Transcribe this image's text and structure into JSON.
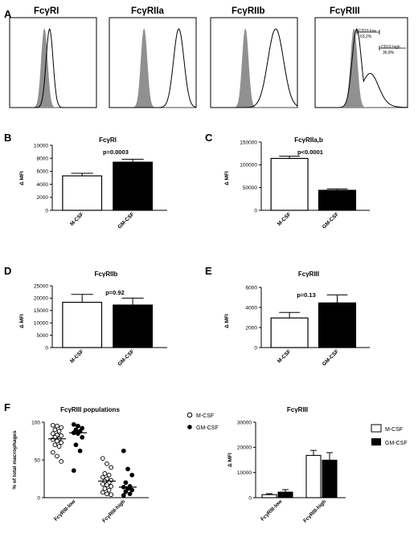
{
  "panel_letters": [
    "A",
    "B",
    "C",
    "D",
    "E",
    "F"
  ],
  "colors": {
    "fill_black": "#000000",
    "fill_white": "#ffffff",
    "isotype_gray": "#909090"
  },
  "legend": {
    "scatter": [
      {
        "label": "M-CSF",
        "marker": "open-circle"
      },
      {
        "label": "GM-CSF",
        "marker": "filled-circle"
      }
    ],
    "bar": [
      {
        "label": "M-CSF",
        "fill": "white"
      },
      {
        "label": "GM-CSF",
        "fill": "black"
      }
    ]
  },
  "chart_data": [
    {
      "id": "A1",
      "type": "histogram",
      "title": "FcγRI",
      "series": [
        {
          "name": "isotype",
          "style": "filled-gray",
          "mode": 0.4,
          "width": 0.035
        },
        {
          "name": "stained",
          "style": "outline",
          "mode": 0.46,
          "width": 0.04
        }
      ]
    },
    {
      "id": "A2",
      "type": "histogram",
      "title": "FcγRIIa",
      "series": [
        {
          "name": "isotype",
          "style": "filled-gray",
          "mode": 0.4,
          "width": 0.035
        },
        {
          "name": "stained",
          "style": "outline",
          "mode": 0.8,
          "width": 0.06
        }
      ]
    },
    {
      "id": "A3",
      "type": "histogram",
      "title": "FcγRIIb",
      "series": [
        {
          "name": "isotype",
          "style": "filled-gray",
          "mode": 0.4,
          "width": 0.035
        },
        {
          "name": "stained",
          "style": "outline",
          "mode": 0.75,
          "width": 0.09
        }
      ]
    },
    {
      "id": "A4",
      "type": "histogram",
      "title": "FcγRIII",
      "gates": [
        {
          "label": "CD16 low",
          "value": "63,2%"
        },
        {
          "label": "CD16 high",
          "value": "36,8%"
        }
      ],
      "series": [
        {
          "name": "isotype",
          "style": "filled-gray",
          "mode": 0.42,
          "width": 0.035
        },
        {
          "name": "stained",
          "style": "outline",
          "mode": 0.45,
          "width": 0.05,
          "tail": true
        }
      ]
    },
    {
      "id": "B",
      "type": "bar",
      "title": "FcγRI",
      "ylabel": "Δ MFI",
      "categories": [
        "M-CSF",
        "GM-CSF"
      ],
      "values": [
        5300,
        7400
      ],
      "errors": [
        400,
        450
      ],
      "ylim": [
        0,
        10000
      ],
      "yticks": [
        0,
        2000,
        4000,
        6000,
        8000,
        10000
      ],
      "ytick_labels": [
        "0",
        "2000",
        "4000",
        "6000",
        "8000",
        "10000"
      ],
      "pvalue": "p=0.0003"
    },
    {
      "id": "C",
      "type": "bar",
      "title": "FcγRIIa,b",
      "ylabel": "Δ MFI",
      "categories": [
        "M-CSF",
        "GM-CSF"
      ],
      "values": [
        114000,
        44000
      ],
      "errors": [
        5000,
        3000
      ],
      "ylim": [
        0,
        150000
      ],
      "yticks": [
        0,
        50000,
        100000,
        150000
      ],
      "ytick_labels": [
        "0",
        "50000",
        "100000",
        "150000"
      ],
      "pvalue": "p<0.0001"
    },
    {
      "id": "D",
      "type": "bar",
      "title": "FcγRIIb",
      "ylabel": "Δ MFI",
      "categories": [
        "M-CSF",
        "GM-CSF"
      ],
      "values": [
        18300,
        17200
      ],
      "errors": [
        3200,
        2800
      ],
      "ylim": [
        0,
        25000
      ],
      "yticks": [
        0,
        5000,
        10000,
        15000,
        20000,
        25000
      ],
      "ytick_labels": [
        "0",
        "5000",
        "10000",
        "15000",
        "20000",
        "25000"
      ],
      "pvalue": "p=0.92"
    },
    {
      "id": "E",
      "type": "bar",
      "title": "FcγRIII",
      "ylabel": "Δ MFI",
      "categories": [
        "M-CSF",
        "GM-CSF"
      ],
      "values": [
        2950,
        4450
      ],
      "errors": [
        550,
        800
      ],
      "ylim": [
        0,
        6000
      ],
      "yticks": [
        0,
        2000,
        4000,
        6000
      ],
      "ytick_labels": [
        "0",
        "2000",
        "4000",
        "6000"
      ],
      "pvalue": "p=0.13"
    },
    {
      "id": "F1",
      "type": "scatter",
      "title": "FcγRIII populations",
      "ylabel": "% of total macrophages",
      "categories": [
        "FcγRIII-low",
        "FcγRIII-high"
      ],
      "ylim": [
        0,
        100
      ],
      "yticks": [
        0,
        50,
        100
      ],
      "ytick_labels": [
        "0",
        "50",
        "100"
      ],
      "series": [
        {
          "name": "M-CSF",
          "marker": "open",
          "groups": [
            {
              "category": "FcγRIII-low",
              "values": [
                96,
                95,
                93,
                90,
                88,
                85,
                83,
                82,
                80,
                78,
                77,
                75,
                73,
                70,
                68,
                60,
                55,
                48
              ],
              "median": 78
            },
            {
              "category": "FcγRIII-high",
              "values": [
                52,
                45,
                40,
                32,
                30,
                27,
                25,
                23,
                22,
                20,
                18,
                17,
                15,
                12,
                10,
                7,
                5,
                4
              ],
              "median": 22
            }
          ]
        },
        {
          "name": "GM-CSF",
          "marker": "filled",
          "groups": [
            {
              "category": "FcγRIII-low",
              "values": [
                97,
                95,
                92,
                90,
                88,
                86,
                85,
                80,
                70,
                62,
                36
              ],
              "median": 86
            },
            {
              "category": "FcγRIII-high",
              "values": [
                62,
                38,
                30,
                20,
                15,
                14,
                12,
                10,
                8,
                5,
                3
              ],
              "median": 14
            }
          ]
        }
      ]
    },
    {
      "id": "F2",
      "type": "bar",
      "title": "FcγRIII",
      "ylabel": "Δ MFI",
      "categories": [
        "FcγRIII-low",
        "FcγRIII-high"
      ],
      "series": [
        {
          "name": "M-CSF",
          "values": [
            1200,
            16800
          ],
          "errors": [
            400,
            2000
          ]
        },
        {
          "name": "GM-CSF",
          "values": [
            2200,
            14900
          ],
          "errors": [
            1000,
            3000
          ]
        }
      ],
      "ylim": [
        0,
        30000
      ],
      "yticks": [
        0,
        10000,
        20000,
        30000
      ],
      "ytick_labels": [
        "0",
        "10000",
        "20000",
        "30000"
      ]
    }
  ]
}
